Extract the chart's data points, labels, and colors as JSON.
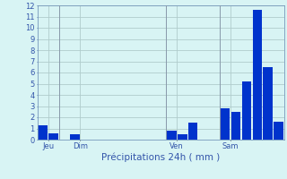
{
  "bar_values": [
    1.3,
    0.6,
    0.0,
    0.5,
    0.0,
    0.0,
    0.0,
    0.0,
    0.0,
    0.0,
    0.0,
    0.0,
    0.8,
    0.5,
    1.5,
    0.0,
    0.0,
    2.8,
    2.5,
    5.2,
    11.6,
    6.5,
    1.6
  ],
  "bar_color": "#0033cc",
  "background_color": "#d8f4f4",
  "grid_color": "#b0cccc",
  "axis_label_color": "#3355aa",
  "tick_label_color": "#3355aa",
  "xlabel": "Précipitations 24h ( mm )",
  "ylim": [
    0,
    12
  ],
  "yticks": [
    0,
    1,
    2,
    3,
    4,
    5,
    6,
    7,
    8,
    9,
    10,
    11,
    12
  ],
  "day_labels": [
    "Jeu",
    "Dim",
    "Ven",
    "Sam"
  ],
  "day_positions": [
    0.5,
    3.5,
    12.5,
    17.5
  ],
  "vline_positions": [
    2,
    12,
    17
  ],
  "n_bars": 23,
  "xlabel_fontsize": 7.5,
  "tick_fontsize": 6,
  "spine_color": "#7799bb"
}
